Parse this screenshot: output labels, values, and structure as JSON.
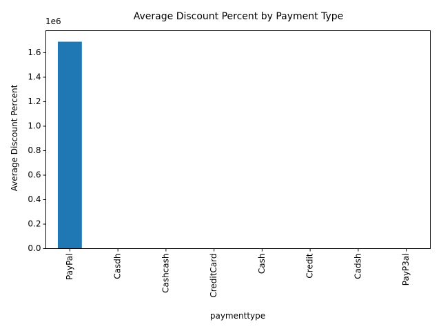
{
  "chart_data": {
    "type": "bar",
    "title": "Average Discount Percent by Payment Type",
    "xlabel": "paymenttype",
    "ylabel": "Average Discount Percent",
    "offset_label": "1e6",
    "categories": [
      "PayPal",
      "Casdh",
      "Cashcash",
      "CreditCard",
      "Cash",
      "Credit",
      "Cadsh",
      "PayP3al"
    ],
    "values": [
      1690000,
      0,
      0,
      0,
      0,
      0,
      0,
      0
    ],
    "ylim": [
      0,
      1780000
    ],
    "yticks": [
      0,
      200000,
      400000,
      600000,
      800000,
      1000000,
      1200000,
      1400000,
      1600000
    ],
    "ytick_labels": [
      "0.0",
      "0.2",
      "0.4",
      "0.6",
      "0.8",
      "1.0",
      "1.2",
      "1.4",
      "1.6"
    ],
    "bar_color": "#1f77b4",
    "grid": false,
    "legend": "none"
  }
}
